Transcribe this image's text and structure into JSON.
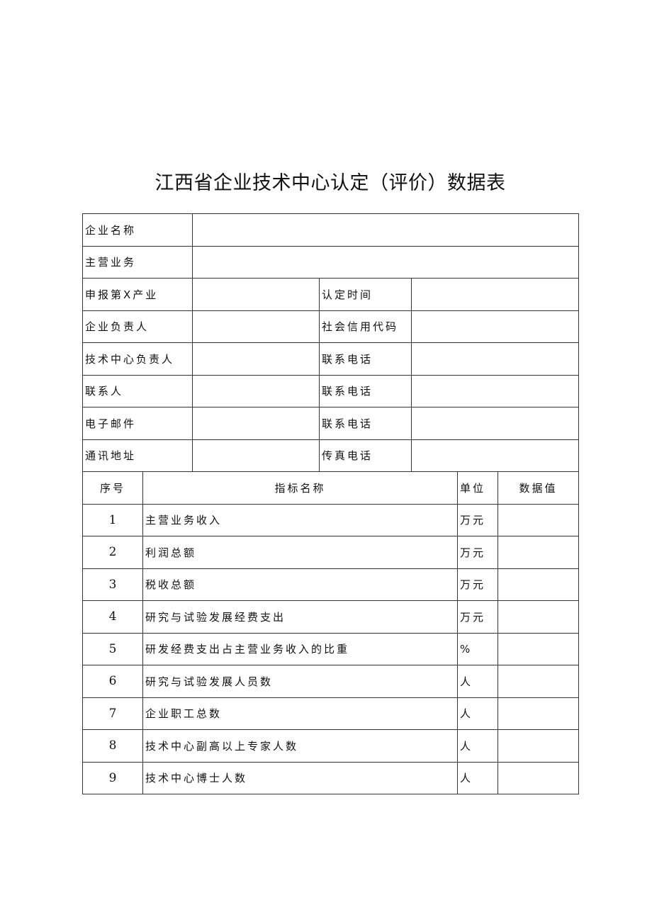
{
  "title": "江西省企业技术中心认定（评价）数据表",
  "info_rows": [
    {
      "label": "企业名称",
      "full": true
    },
    {
      "label": "主营业务",
      "full": true
    },
    {
      "label": "申报第X产业",
      "label2": "认定时间"
    },
    {
      "label": "企业负责人",
      "label2": "社会信用代码"
    },
    {
      "label": "技术中心负责人",
      "label2": "联系电话"
    },
    {
      "label": "联系人",
      "label2": "联系电话"
    },
    {
      "label": "电子邮件",
      "label2": "联系电话"
    },
    {
      "label": "通讯地址",
      "label2": "传真电话"
    }
  ],
  "indicator_header": {
    "no": "序号",
    "name": "指标名称",
    "unit": "单位",
    "value": "数据值"
  },
  "indicators": [
    {
      "no": "1",
      "name": "主营业务收入",
      "unit": "万元",
      "value": ""
    },
    {
      "no": "2",
      "name": "利润总额",
      "unit": "万元",
      "value": ""
    },
    {
      "no": "3",
      "name": "税收总额",
      "unit": "万元",
      "value": ""
    },
    {
      "no": "4",
      "name": "研究与试验发展经费支出",
      "unit": "万元",
      "value": ""
    },
    {
      "no": "5",
      "name": "研发经费支出占主营业务收入的比重",
      "unit": "%",
      "value": ""
    },
    {
      "no": "6",
      "name": "研究与试验发展人员数",
      "unit": "人",
      "value": ""
    },
    {
      "no": "7",
      "name": "企业职工总数",
      "unit": "人",
      "value": ""
    },
    {
      "no": "8",
      "name": "技术中心副高以上专家人数",
      "unit": "人",
      "value": ""
    },
    {
      "no": "9",
      "name": "技术中心博士人数",
      "unit": "人",
      "value": ""
    }
  ]
}
